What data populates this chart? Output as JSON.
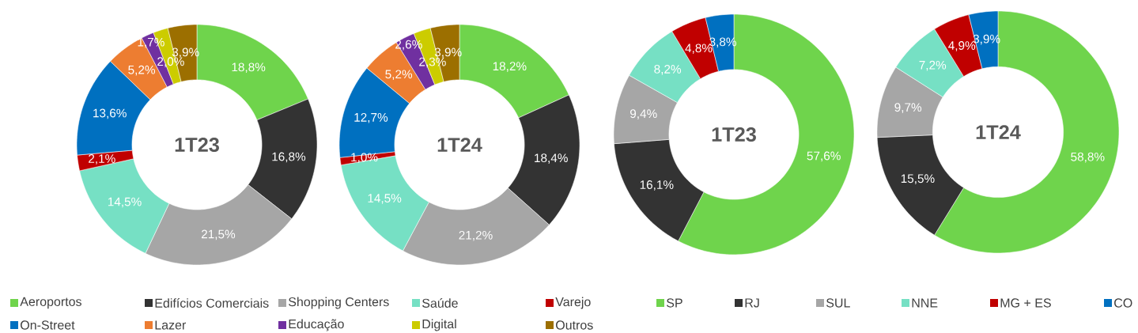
{
  "chart_data": [
    {
      "type": "donut",
      "title": "1T23",
      "legend": "bottom",
      "categories": [
        "Aeroportos",
        "Edifícios Comerciais",
        "Shopping Centers",
        "Saúde",
        "Varejo",
        "On-Street",
        "Lazer",
        "Educação",
        "Digital",
        "Outros"
      ],
      "values": [
        18.8,
        16.8,
        21.5,
        14.5,
        2.1,
        13.6,
        5.2,
        1.7,
        2.0,
        3.9
      ],
      "value_labels": [
        "18,8%",
        "16,8%",
        "21,5%",
        "14,5%",
        "2,1%",
        "13,6%",
        "5,2%",
        "1,7%",
        "2,0%",
        "3,9%"
      ],
      "colors": [
        "#6fd44c",
        "#333333",
        "#a6a6a6",
        "#76e0c4",
        "#c00000",
        "#0070c0",
        "#ed7d31",
        "#7030a0",
        "#cccc00",
        "#9c6f00"
      ]
    },
    {
      "type": "donut",
      "title": "1T24",
      "categories": [
        null,
        null,
        null,
        null,
        null,
        null,
        null,
        null,
        null,
        null
      ],
      "values": [
        18.2,
        18.4,
        21.2,
        14.5,
        1.0,
        12.7,
        5.2,
        2.6,
        2.3,
        3.9
      ],
      "value_labels": [
        "18,2%",
        "18,4%",
        "21,2%",
        "14,5%",
        "1,0%",
        "12,7%",
        "5,2%",
        "2,6%",
        "2,3%",
        "3,9%"
      ],
      "colors": [
        "#6fd44c",
        "#333333",
        "#a6a6a6",
        "#76e0c4",
        "#c00000",
        "#0070c0",
        "#ed7d31",
        "#7030a0",
        "#cccc00",
        "#9c6f00"
      ]
    },
    {
      "type": "donut",
      "title": "1T23",
      "legend": "bottom",
      "categories": [
        "SP",
        "RJ",
        "SUL",
        "NNE",
        "MG + ES",
        "CO"
      ],
      "values": [
        57.6,
        16.1,
        9.4,
        8.2,
        4.8,
        3.8
      ],
      "value_labels": [
        "57,6%",
        "16,1%",
        "9,4%",
        "8,2%",
        "4,8%",
        "3,8%"
      ],
      "colors": [
        "#6fd44c",
        "#333333",
        "#a6a6a6",
        "#76e0c4",
        "#c00000",
        "#0070c0"
      ]
    },
    {
      "type": "donut",
      "title": "1T24",
      "categories": [
        null,
        null,
        null,
        null,
        null,
        null
      ],
      "values": [
        58.8,
        15.5,
        9.7,
        7.2,
        4.9,
        3.9
      ],
      "value_labels": [
        "58,8%",
        "15,5%",
        "9,7%",
        "7,2%",
        "4,9%",
        "3,9%"
      ],
      "colors": [
        "#6fd44c",
        "#333333",
        "#a6a6a6",
        "#76e0c4",
        "#c00000",
        "#0070c0"
      ]
    }
  ]
}
